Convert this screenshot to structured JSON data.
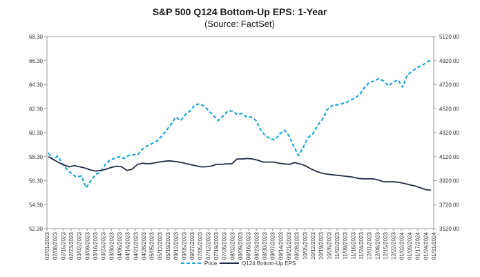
{
  "chart_data": {
    "type": "line",
    "title": "S&P 500 Q124 Bottom-Up EPS: 1-Year",
    "subtitle": "(Source: FactSet)",
    "y_left": {
      "ylim": [
        52.3,
        68.3
      ],
      "ticks": [
        "52.30",
        "54.30",
        "56.30",
        "58.30",
        "60.30",
        "62.30",
        "64.30",
        "66.30",
        "68.30"
      ]
    },
    "y_right": {
      "ylim": [
        3520,
        5120
      ],
      "ticks": [
        "3520.00",
        "3720.00",
        "3920.00",
        "4120.00",
        "4320.00",
        "4520.00",
        "4720.00",
        "4920.00",
        "5120.00"
      ]
    },
    "x_ticks": [
      "02/01/2023",
      "02/08/2023",
      "02/15/2023",
      "02/23/2023",
      "03/02/2023",
      "03/09/2023",
      "03/16/2023",
      "03/23/2023",
      "03/30/2023",
      "04/06/2023",
      "04/14/2023",
      "04/21/2023",
      "04/28/2023",
      "05/05/2023",
      "05/12/2023",
      "05/19/2023",
      "09/12/2023",
      "09/05/2023",
      "09/27/2023",
      "07/05/2023",
      "07/12/2023",
      "07/19/2023",
      "07/26/2023",
      "08/02/2023",
      "08/09/2023",
      "08/16/2023",
      "08/23/2023",
      "08/30/2023",
      "09/07/2023",
      "09/14/2023",
      "09/21/2023",
      "09/28/2023",
      "10/05/2023",
      "10/12/2023",
      "10/19/2023",
      "10/26/2023",
      "11/02/2023",
      "11/09/2023",
      "11/16/2023",
      "11/24/2023",
      "12/01/2023",
      "12/08/2023",
      "12/15/2023",
      "12/22/2023",
      "01/02/2024",
      "01/09/2024",
      "01/17/2024",
      "01/24/2024",
      "01/31/2024"
    ],
    "series": [
      {
        "name": "Price",
        "axis": "right",
        "color": "#1ba5d8",
        "style": "dashed",
        "values": [
          4150,
          4095,
          4125,
          4060,
          4010,
          3975,
          3950,
          3960,
          3860,
          3920,
          3970,
          3990,
          4050,
          4090,
          4105,
          4120,
          4105,
          4130,
          4135,
          4140,
          4185,
          4210,
          4230,
          4250,
          4290,
          4340,
          4390,
          4450,
          4420,
          4470,
          4500,
          4550,
          4560,
          4540,
          4500,
          4460,
          4420,
          4460,
          4500,
          4500,
          4470,
          4480,
          4450,
          4450,
          4420,
          4340,
          4290,
          4270,
          4260,
          4310,
          4340,
          4290,
          4200,
          4130,
          4200,
          4280,
          4310,
          4380,
          4430,
          4510,
          4545,
          4550,
          4560,
          4570,
          4590,
          4610,
          4640,
          4700,
          4740,
          4750,
          4770,
          4750,
          4710,
          4740,
          4760,
          4700,
          4800,
          4830,
          4860,
          4880,
          4900,
          4930
        ]
      },
      {
        "name": "Q124 Bottom-Up EPS",
        "axis": "left",
        "color": "#1f2a44",
        "style": "solid",
        "values": [
          58.3,
          58.05,
          57.8,
          57.6,
          57.45,
          57.55,
          57.45,
          57.35,
          57.2,
          57.1,
          57.15,
          57.25,
          57.4,
          57.5,
          57.45,
          57.15,
          57.25,
          57.65,
          57.75,
          57.7,
          57.75,
          57.85,
          57.9,
          57.95,
          57.9,
          57.85,
          57.75,
          57.65,
          57.55,
          57.45,
          57.45,
          57.5,
          57.65,
          57.65,
          57.7,
          57.7,
          58.1,
          58.1,
          58.15,
          58.1,
          58.0,
          57.85,
          57.85,
          57.85,
          57.75,
          57.7,
          57.65,
          57.8,
          57.7,
          57.55,
          57.3,
          57.1,
          56.95,
          56.85,
          56.8,
          56.75,
          56.7,
          56.65,
          56.6,
          56.5,
          56.45,
          56.45,
          56.45,
          56.35,
          56.2,
          56.2,
          56.2,
          56.15,
          56.05,
          55.95,
          55.85,
          55.7,
          55.55,
          55.5
        ]
      }
    ],
    "legend": {
      "placement": "bottom"
    },
    "grid": false
  }
}
